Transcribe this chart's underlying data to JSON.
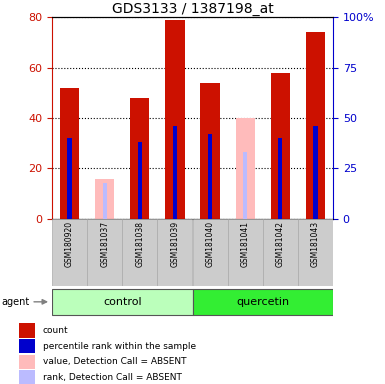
{
  "title": "GDS3133 / 1387198_at",
  "samples": [
    "GSM180920",
    "GSM181037",
    "GSM181038",
    "GSM181039",
    "GSM181040",
    "GSM181041",
    "GSM181042",
    "GSM181043"
  ],
  "groups": [
    {
      "name": "control",
      "samples": [
        "GSM180920",
        "GSM181037",
        "GSM181038",
        "GSM181039"
      ],
      "color": "#bbffbb"
    },
    {
      "name": "quercetin",
      "samples": [
        "GSM181040",
        "GSM181041",
        "GSM181042",
        "GSM181043"
      ],
      "color": "#33ee33"
    }
  ],
  "count_values": [
    52,
    null,
    48,
    79,
    54,
    null,
    58,
    74
  ],
  "absent_value": [
    null,
    16,
    null,
    null,
    null,
    40,
    null,
    null
  ],
  "percentile_rank": [
    40,
    null,
    38,
    46,
    42,
    null,
    40,
    46
  ],
  "absent_rank": [
    null,
    18,
    null,
    null,
    null,
    33,
    null,
    null
  ],
  "ylim_left": [
    0,
    80
  ],
  "ylim_right": [
    0,
    100
  ],
  "yticks_left": [
    0,
    20,
    40,
    60,
    80
  ],
  "yticks_right": [
    0,
    25,
    50,
    75,
    100
  ],
  "ytick_right_labels": [
    "0",
    "25",
    "50",
    "75",
    "100%"
  ],
  "bar_color_count": "#cc1100",
  "bar_color_absent_value": "#ffbbbb",
  "bar_color_rank": "#0000cc",
  "bar_color_absent_rank": "#bbbbff",
  "count_bar_width": 0.55,
  "rank_bar_width": 0.12,
  "agent_label": "agent",
  "legend_items": [
    {
      "color": "#cc1100",
      "label": "count"
    },
    {
      "color": "#0000cc",
      "label": "percentile rank within the sample"
    },
    {
      "color": "#ffbbbb",
      "label": "value, Detection Call = ABSENT"
    },
    {
      "color": "#bbbbff",
      "label": "rank, Detection Call = ABSENT"
    }
  ],
  "title_fontsize": 10,
  "left_tick_color": "#cc1100",
  "right_tick_color": "#0000cc"
}
